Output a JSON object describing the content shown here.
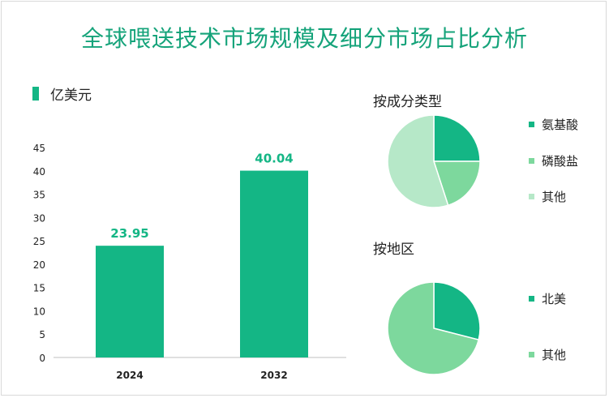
{
  "title": "全球喂送技术市场规模及细分市场占比分析",
  "colors": {
    "title": "#15a37a",
    "bar": "#14b685",
    "label": "#14b685",
    "slice_dark": "#14b685",
    "slice_mid": "#7dd89d",
    "slice_light": "#b6e8c8"
  },
  "chart_data": [
    {
      "type": "bar",
      "unit_legend": "亿美元",
      "categories": [
        "2024",
        "2032"
      ],
      "values": [
        23.95,
        40.04
      ],
      "value_labels": [
        "23.95",
        "40.04"
      ],
      "ylim": [
        0,
        45
      ],
      "yticks": [
        "0",
        "5",
        "10",
        "15",
        "20",
        "25",
        "30",
        "35",
        "40",
        "45"
      ],
      "grid": false
    },
    {
      "type": "pie",
      "title": "按成分类型",
      "labels": [
        "氨基酸",
        "磷酸盐",
        "其他"
      ],
      "values": [
        25,
        20,
        55
      ]
    },
    {
      "type": "pie",
      "title": "按地区",
      "labels": [
        "北美",
        "其他"
      ],
      "values": [
        29,
        71
      ]
    }
  ]
}
